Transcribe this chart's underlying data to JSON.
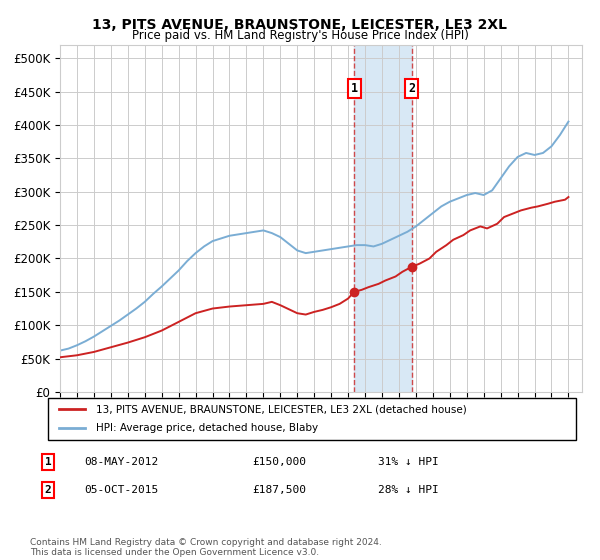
{
  "title1": "13, PITS AVENUE, BRAUNSTONE, LEICESTER, LE3 2XL",
  "title2": "Price paid vs. HM Land Registry's House Price Index (HPI)",
  "ylim": [
    0,
    520000
  ],
  "xlim_start": 1995.0,
  "xlim_end": 2025.8,
  "yticks": [
    0,
    50000,
    100000,
    150000,
    200000,
    250000,
    300000,
    350000,
    400000,
    450000,
    500000
  ],
  "ytick_labels": [
    "£0",
    "£50K",
    "£100K",
    "£150K",
    "£200K",
    "£250K",
    "£300K",
    "£350K",
    "£400K",
    "£450K",
    "£500K"
  ],
  "hpi_color": "#7aadd4",
  "price_color": "#cc2222",
  "sale1_date": 2012.35,
  "sale1_price": 150000,
  "sale2_date": 2015.75,
  "sale2_price": 187500,
  "legend_house": "13, PITS AVENUE, BRAUNSTONE, LEICESTER, LE3 2XL (detached house)",
  "legend_hpi": "HPI: Average price, detached house, Blaby",
  "annotation1_text": "08-MAY-2012",
  "annotation1_price": "£150,000",
  "annotation1_hpi": "31% ↓ HPI",
  "annotation2_text": "05-OCT-2015",
  "annotation2_price": "£187,500",
  "annotation2_hpi": "28% ↓ HPI",
  "footnote": "Contains HM Land Registry data © Crown copyright and database right 2024.\nThis data is licensed under the Open Government Licence v3.0.",
  "background_color": "#ffffff",
  "grid_color": "#cccccc",
  "shade_color": "#d8e8f5",
  "hpi_years": [
    1995.0,
    1995.5,
    1996.0,
    1996.5,
    1997.0,
    1997.5,
    1998.0,
    1998.5,
    1999.0,
    1999.5,
    2000.0,
    2000.5,
    2001.0,
    2001.5,
    2002.0,
    2002.5,
    2003.0,
    2003.5,
    2004.0,
    2004.5,
    2005.0,
    2005.5,
    2006.0,
    2006.5,
    2007.0,
    2007.5,
    2008.0,
    2008.5,
    2009.0,
    2009.5,
    2010.0,
    2010.5,
    2011.0,
    2011.5,
    2012.0,
    2012.5,
    2013.0,
    2013.5,
    2014.0,
    2014.5,
    2015.0,
    2015.5,
    2016.0,
    2016.5,
    2017.0,
    2017.5,
    2018.0,
    2018.5,
    2019.0,
    2019.5,
    2020.0,
    2020.5,
    2021.0,
    2021.5,
    2022.0,
    2022.5,
    2023.0,
    2023.5,
    2024.0,
    2024.5,
    2025.0
  ],
  "hpi_vals": [
    62000,
    65000,
    70000,
    76000,
    83000,
    91000,
    99000,
    107000,
    116000,
    125000,
    135000,
    147000,
    158000,
    170000,
    182000,
    196000,
    208000,
    218000,
    226000,
    230000,
    234000,
    236000,
    238000,
    240000,
    242000,
    238000,
    232000,
    222000,
    212000,
    208000,
    210000,
    212000,
    214000,
    216000,
    218000,
    220000,
    220000,
    218000,
    222000,
    228000,
    234000,
    240000,
    248000,
    258000,
    268000,
    278000,
    285000,
    290000,
    295000,
    298000,
    295000,
    302000,
    320000,
    338000,
    352000,
    358000,
    355000,
    358000,
    368000,
    385000,
    405000
  ],
  "price_years": [
    1995.0,
    1996.0,
    1997.0,
    1998.0,
    1999.0,
    2000.0,
    2001.0,
    2002.0,
    2003.0,
    2004.0,
    2005.0,
    2006.0,
    2007.0,
    2007.5,
    2008.0,
    2008.5,
    2009.0,
    2009.5,
    2010.0,
    2010.5,
    2011.0,
    2011.5,
    2012.0,
    2012.35,
    2012.35,
    2012.8,
    2013.2,
    2013.8,
    2014.2,
    2014.8,
    2015.2,
    2015.75,
    2015.75,
    2016.2,
    2016.8,
    2017.2,
    2017.8,
    2018.2,
    2018.8,
    2019.2,
    2019.8,
    2020.2,
    2020.8,
    2021.2,
    2021.8,
    2022.2,
    2022.8,
    2023.2,
    2023.8,
    2024.2,
    2024.8,
    2025.0
  ],
  "price_vals": [
    52000,
    55000,
    60000,
    67000,
    74000,
    82000,
    92000,
    105000,
    118000,
    125000,
    128000,
    130000,
    132000,
    135000,
    130000,
    124000,
    118000,
    116000,
    120000,
    123000,
    127000,
    132000,
    140000,
    150000,
    150000,
    153000,
    157000,
    162000,
    167000,
    173000,
    180000,
    187500,
    187500,
    192000,
    200000,
    210000,
    220000,
    228000,
    235000,
    242000,
    248000,
    245000,
    252000,
    262000,
    268000,
    272000,
    276000,
    278000,
    282000,
    285000,
    288000,
    292000
  ]
}
